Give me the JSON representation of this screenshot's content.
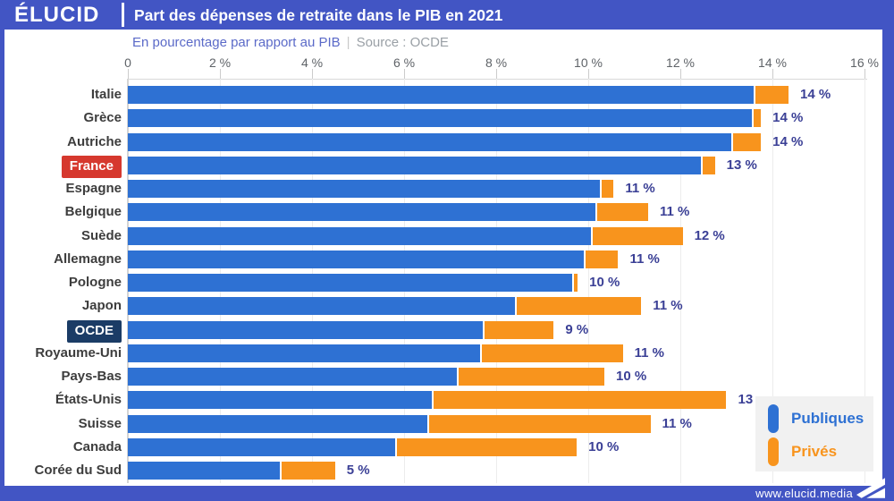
{
  "header": {
    "logo": "ÉLUCID",
    "title": "Part des dépenses de retraite dans le PIB en 2021"
  },
  "subtitle": {
    "text": "En pourcentage par rapport au PIB",
    "separator": "|",
    "source": "Source : OCDE"
  },
  "footer": {
    "url": "www.elucid.media"
  },
  "legend": {
    "items": [
      {
        "label": "Publiques",
        "color": "#2e71d3"
      },
      {
        "label": "Privés",
        "color": "#f8941d"
      }
    ]
  },
  "colors": {
    "frame_blue": "#4255c4",
    "bar_blue": "#2e71d3",
    "bar_orange": "#f8941d",
    "france_red": "#d6382e",
    "ocde_navy": "#1b3c66",
    "value_ink": "#3b4096"
  },
  "chart_data": {
    "type": "bar",
    "stacked": true,
    "orientation": "horizontal",
    "title": "Part des dépenses de retraite dans le PIB en 2021",
    "xlabel": "En pourcentage par rapport au PIB",
    "source": "Source : OCDE",
    "xlim": [
      0,
      16
    ],
    "grid": true,
    "legend_position": "bottom-right",
    "x_ticks": [
      {
        "value": 0,
        "label": "0"
      },
      {
        "value": 2,
        "label": "2 %"
      },
      {
        "value": 4,
        "label": "4 %"
      },
      {
        "value": 6,
        "label": "6 %"
      },
      {
        "value": 8,
        "label": "8 %"
      },
      {
        "value": 10,
        "label": "10 %"
      },
      {
        "value": 12,
        "label": "12 %"
      },
      {
        "value": 14,
        "label": "14 %"
      },
      {
        "value": 16,
        "label": "16 %"
      }
    ],
    "series_names": [
      "Publiques",
      "Privés"
    ],
    "rows": [
      {
        "label": "Italie",
        "public": 13.6,
        "private": 0.75,
        "value_label": "14 %",
        "badge": null
      },
      {
        "label": "Grèce",
        "public": 13.55,
        "private": 0.2,
        "value_label": "14 %",
        "badge": null
      },
      {
        "label": "Autriche",
        "public": 13.1,
        "private": 0.65,
        "value_label": "14 %",
        "badge": null
      },
      {
        "label": "France",
        "public": 12.45,
        "private": 0.3,
        "value_label": "13 %",
        "badge": "france"
      },
      {
        "label": "Espagne",
        "public": 10.25,
        "private": 0.3,
        "value_label": "11 %",
        "badge": null
      },
      {
        "label": "Belgique",
        "public": 10.15,
        "private": 1.15,
        "value_label": "11 %",
        "badge": null
      },
      {
        "label": "Suède",
        "public": 10.05,
        "private": 2.0,
        "value_label": "12 %",
        "badge": null
      },
      {
        "label": "Allemagne",
        "public": 9.9,
        "private": 0.75,
        "value_label": "11 %",
        "badge": null
      },
      {
        "label": "Pologne",
        "public": 9.65,
        "private": 0.12,
        "value_label": "10 %",
        "badge": null
      },
      {
        "label": "Japon",
        "public": 8.4,
        "private": 2.75,
        "value_label": "11 %",
        "badge": null
      },
      {
        "label": "OCDE",
        "public": 7.7,
        "private": 1.55,
        "value_label": "9 %",
        "badge": "ocde"
      },
      {
        "label": "Royaume-Uni",
        "public": 7.65,
        "private": 3.1,
        "value_label": "11 %",
        "badge": null
      },
      {
        "label": "Pays-Bas",
        "public": 7.15,
        "private": 3.2,
        "value_label": "10 %",
        "badge": null
      },
      {
        "label": "États-Unis",
        "public": 6.6,
        "private": 6.4,
        "value_label": "13",
        "badge": null
      },
      {
        "label": "Suisse",
        "public": 6.5,
        "private": 4.85,
        "value_label": "11 %",
        "badge": null
      },
      {
        "label": "Canada",
        "public": 5.8,
        "private": 3.95,
        "value_label": "10 %",
        "badge": null
      },
      {
        "label": "Corée du Sud",
        "public": 3.3,
        "private": 1.2,
        "value_label": "5 %",
        "badge": null
      }
    ]
  }
}
